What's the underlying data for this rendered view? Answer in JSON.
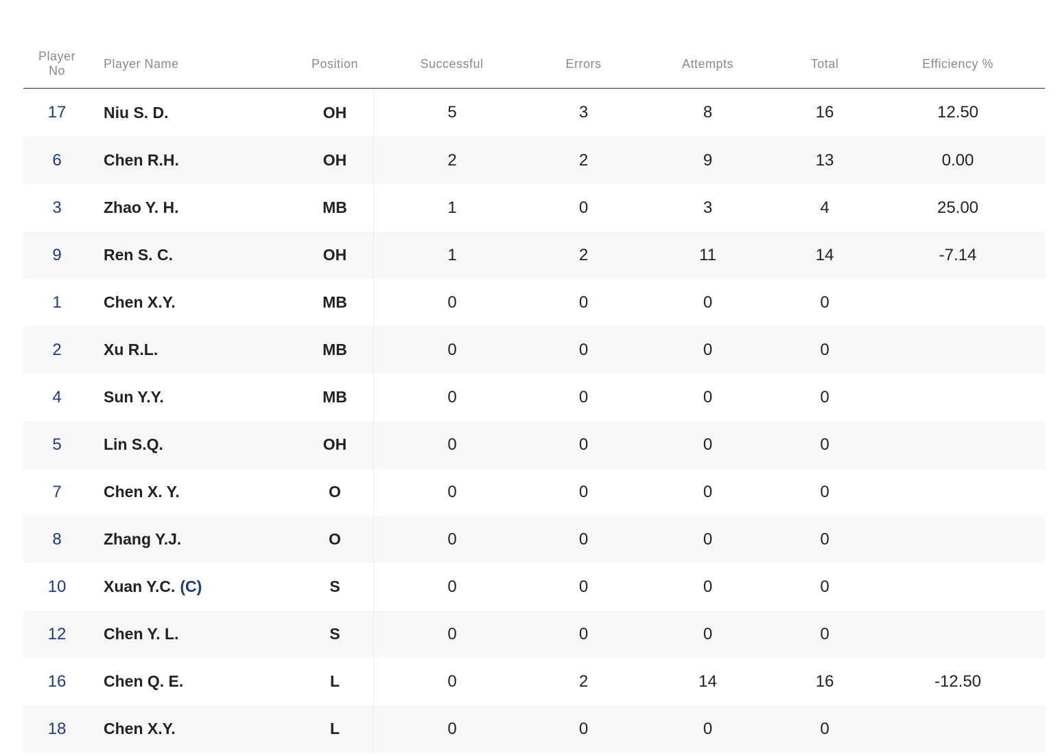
{
  "table": {
    "headers": {
      "player_no_line1": "Player",
      "player_no_line2": "No",
      "player_name": "Player Name",
      "position": "Position",
      "successful": "Successful",
      "errors": "Errors",
      "attempts": "Attempts",
      "total": "Total",
      "efficiency": "Efficiency %"
    },
    "rows": [
      {
        "no": "17",
        "name": "Niu S. D.",
        "captain": "",
        "position": "OH",
        "successful": "5",
        "errors": "3",
        "attempts": "8",
        "total": "16",
        "efficiency": "12.50"
      },
      {
        "no": "6",
        "name": "Chen R.H.",
        "captain": "",
        "position": "OH",
        "successful": "2",
        "errors": "2",
        "attempts": "9",
        "total": "13",
        "efficiency": "0.00"
      },
      {
        "no": "3",
        "name": "Zhao Y. H.",
        "captain": "",
        "position": "MB",
        "successful": "1",
        "errors": "0",
        "attempts": "3",
        "total": "4",
        "efficiency": "25.00"
      },
      {
        "no": "9",
        "name": "Ren S. C.",
        "captain": "",
        "position": "OH",
        "successful": "1",
        "errors": "2",
        "attempts": "11",
        "total": "14",
        "efficiency": "-7.14"
      },
      {
        "no": "1",
        "name": "Chen X.Y.",
        "captain": "",
        "position": "MB",
        "successful": "0",
        "errors": "0",
        "attempts": "0",
        "total": "0",
        "efficiency": ""
      },
      {
        "no": "2",
        "name": "Xu R.L.",
        "captain": "",
        "position": "MB",
        "successful": "0",
        "errors": "0",
        "attempts": "0",
        "total": "0",
        "efficiency": ""
      },
      {
        "no": "4",
        "name": "Sun Y.Y.",
        "captain": "",
        "position": "MB",
        "successful": "0",
        "errors": "0",
        "attempts": "0",
        "total": "0",
        "efficiency": ""
      },
      {
        "no": "5",
        "name": "Lin S.Q.",
        "captain": "",
        "position": "OH",
        "successful": "0",
        "errors": "0",
        "attempts": "0",
        "total": "0",
        "efficiency": ""
      },
      {
        "no": "7",
        "name": "Chen X. Y.",
        "captain": "",
        "position": "O",
        "successful": "0",
        "errors": "0",
        "attempts": "0",
        "total": "0",
        "efficiency": ""
      },
      {
        "no": "8",
        "name": "Zhang Y.J.",
        "captain": "",
        "position": "O",
        "successful": "0",
        "errors": "0",
        "attempts": "0",
        "total": "0",
        "efficiency": ""
      },
      {
        "no": "10",
        "name": "Xuan Y.C.",
        "captain": "(C)",
        "position": "S",
        "successful": "0",
        "errors": "0",
        "attempts": "0",
        "total": "0",
        "efficiency": ""
      },
      {
        "no": "12",
        "name": "Chen Y. L.",
        "captain": "",
        "position": "S",
        "successful": "0",
        "errors": "0",
        "attempts": "0",
        "total": "0",
        "efficiency": ""
      },
      {
        "no": "16",
        "name": "Chen Q. E.",
        "captain": "",
        "position": "L",
        "successful": "0",
        "errors": "2",
        "attempts": "14",
        "total": "16",
        "efficiency": "-12.50"
      },
      {
        "no": "18",
        "name": "Chen X.Y.",
        "captain": "",
        "position": "L",
        "successful": "0",
        "errors": "0",
        "attempts": "0",
        "total": "0",
        "efficiency": ""
      }
    ]
  }
}
